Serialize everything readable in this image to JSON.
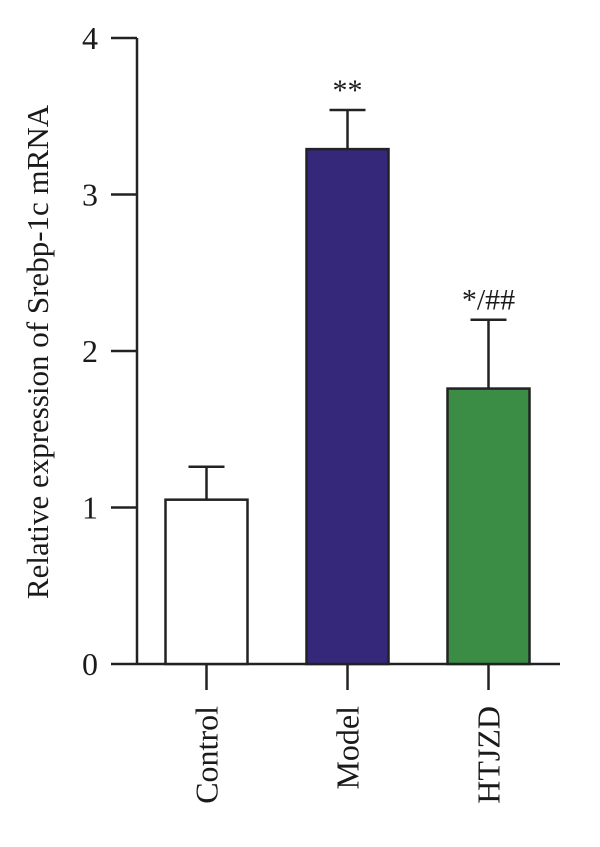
{
  "chart_data": {
    "type": "bar",
    "ylabel": "Relative expression of Srebp-1c mRNA",
    "xlabel": "",
    "ylim": [
      0,
      4
    ],
    "yticks": [
      0,
      1,
      2,
      3,
      4
    ],
    "categories": [
      "Control",
      "Model",
      "HTJZD"
    ],
    "values": [
      1.05,
      3.29,
      1.76
    ],
    "errors": [
      0.21,
      0.25,
      0.44
    ],
    "annotations": [
      "",
      "**",
      "*/##"
    ],
    "colors": [
      "#ffffff",
      "#35287a",
      "#3b8d45"
    ],
    "grid": false,
    "legend": "none"
  }
}
